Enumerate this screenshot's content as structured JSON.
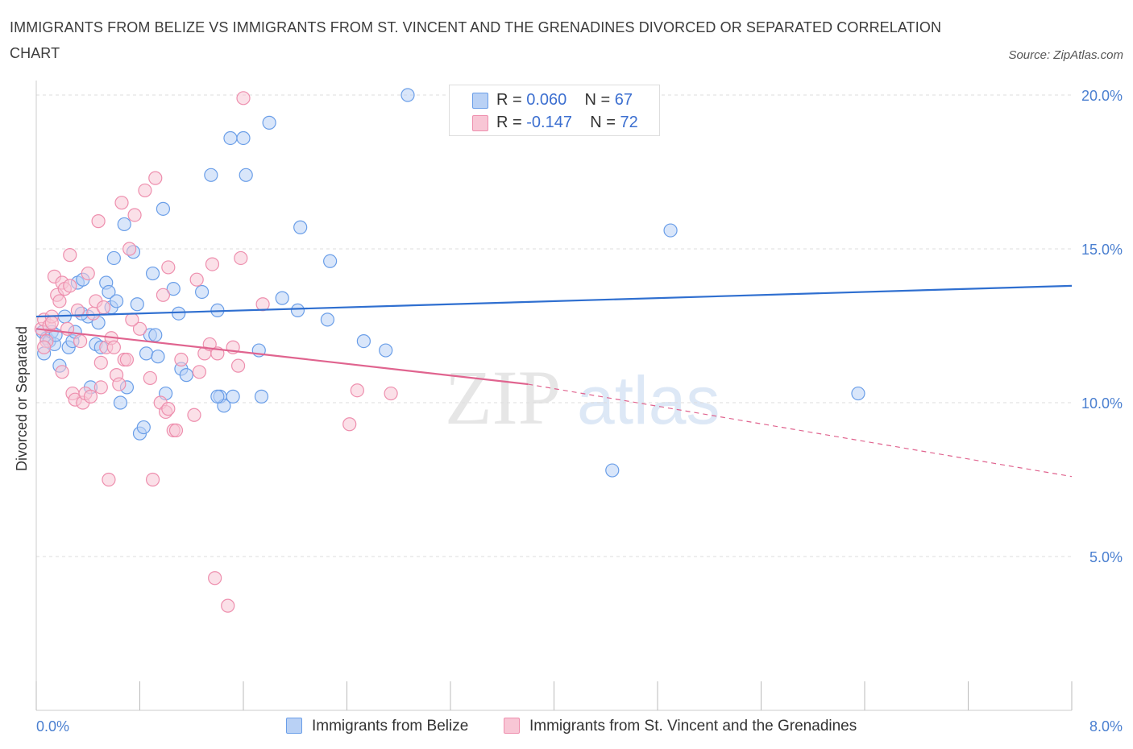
{
  "title": "IMMIGRANTS FROM BELIZE VS IMMIGRANTS FROM ST. VINCENT AND THE GRENADINES DIVORCED OR SEPARATED CORRELATION CHART",
  "source": "Source: ZipAtlas.com",
  "watermark": {
    "zip": "ZIP",
    "atlas": "atlas"
  },
  "legend_stats": [
    {
      "r_label": "R =",
      "r_value": "0.060",
      "n_label": "N =",
      "n_value": "67",
      "color": "#a9c6f2"
    },
    {
      "r_label": "R =",
      "r_value": "-0.147",
      "n_label": "N =",
      "n_value": "72",
      "color": "#f5b8ca"
    }
  ],
  "chart_data": {
    "type": "scatter",
    "ylabel": "Divorced or Separated",
    "xlim": [
      0,
      8
    ],
    "ylim": [
      0,
      20
    ],
    "x_tick_labels": [
      "0.0%",
      "8.0%"
    ],
    "y_ticks": [
      5,
      10,
      15,
      20
    ],
    "y_tick_labels": [
      "5.0%",
      "10.0%",
      "15.0%",
      "20.0%"
    ],
    "grid": "horizontal dashed",
    "legend_position": "bottom",
    "series": [
      {
        "name": "Immigrants from Belize",
        "color": "#6a9ee8",
        "fill": "#b9d1f5",
        "line_color": "#2f6fd0",
        "trend": {
          "x": [
            0,
            8
          ],
          "y": [
            12.8,
            13.8
          ]
        },
        "points": [
          [
            0.05,
            12.3
          ],
          [
            0.08,
            12.1
          ],
          [
            0.1,
            12.0
          ],
          [
            0.12,
            12.3
          ],
          [
            0.14,
            11.9
          ],
          [
            0.18,
            11.2
          ],
          [
            0.22,
            12.8
          ],
          [
            0.25,
            11.8
          ],
          [
            0.28,
            12.0
          ],
          [
            0.3,
            12.3
          ],
          [
            0.32,
            13.9
          ],
          [
            0.36,
            14.0
          ],
          [
            0.4,
            12.8
          ],
          [
            0.42,
            10.5
          ],
          [
            0.46,
            11.9
          ],
          [
            0.48,
            12.6
          ],
          [
            0.5,
            11.8
          ],
          [
            0.54,
            13.9
          ],
          [
            0.56,
            13.6
          ],
          [
            0.58,
            13.1
          ],
          [
            0.6,
            14.7
          ],
          [
            0.62,
            13.3
          ],
          [
            0.65,
            10.0
          ],
          [
            0.68,
            15.8
          ],
          [
            0.7,
            10.5
          ],
          [
            0.75,
            14.9
          ],
          [
            0.78,
            13.2
          ],
          [
            0.8,
            9.0
          ],
          [
            0.83,
            9.2
          ],
          [
            0.85,
            11.6
          ],
          [
            0.88,
            12.2
          ],
          [
            0.9,
            14.2
          ],
          [
            0.92,
            12.2
          ],
          [
            0.94,
            11.5
          ],
          [
            0.98,
            16.3
          ],
          [
            1.0,
            10.3
          ],
          [
            1.06,
            13.7
          ],
          [
            1.1,
            12.9
          ],
          [
            1.12,
            11.1
          ],
          [
            1.16,
            10.9
          ],
          [
            1.28,
            13.6
          ],
          [
            1.35,
            17.4
          ],
          [
            1.4,
            13.0
          ],
          [
            1.42,
            10.2
          ],
          [
            1.45,
            9.9
          ],
          [
            1.5,
            18.6
          ],
          [
            1.52,
            10.2
          ],
          [
            1.6,
            18.6
          ],
          [
            1.62,
            17.4
          ],
          [
            1.72,
            11.7
          ],
          [
            1.74,
            10.2
          ],
          [
            1.8,
            19.1
          ],
          [
            1.9,
            13.4
          ],
          [
            2.02,
            13.0
          ],
          [
            2.04,
            15.7
          ],
          [
            2.25,
            12.7
          ],
          [
            2.27,
            14.6
          ],
          [
            2.53,
            12.0
          ],
          [
            2.7,
            11.7
          ],
          [
            2.87,
            20.0
          ],
          [
            4.45,
            7.8
          ],
          [
            4.9,
            15.6
          ],
          [
            6.35,
            10.3
          ],
          [
            0.06,
            11.6
          ],
          [
            1.4,
            10.2
          ],
          [
            0.15,
            12.2
          ],
          [
            0.35,
            12.9
          ]
        ]
      },
      {
        "name": "Immigrants from St. Vincent and the Grenadines",
        "color": "#ee8fae",
        "fill": "#f8c6d5",
        "line_color": "#e0648f",
        "trend": {
          "x": [
            0,
            3.8
          ],
          "y": [
            12.4,
            10.6
          ]
        },
        "trend_dashed": {
          "x": [
            3.8,
            8
          ],
          "y": [
            10.6,
            7.6
          ]
        },
        "points": [
          [
            0.04,
            12.4
          ],
          [
            0.06,
            12.7
          ],
          [
            0.08,
            12.0
          ],
          [
            0.1,
            12.5
          ],
          [
            0.12,
            12.8
          ],
          [
            0.14,
            14.1
          ],
          [
            0.16,
            13.5
          ],
          [
            0.18,
            13.3
          ],
          [
            0.2,
            13.9
          ],
          [
            0.22,
            13.7
          ],
          [
            0.24,
            12.4
          ],
          [
            0.26,
            14.8
          ],
          [
            0.28,
            10.3
          ],
          [
            0.3,
            10.1
          ],
          [
            0.32,
            13.0
          ],
          [
            0.34,
            12.0
          ],
          [
            0.36,
            10.0
          ],
          [
            0.38,
            10.3
          ],
          [
            0.4,
            14.2
          ],
          [
            0.42,
            10.2
          ],
          [
            0.44,
            12.9
          ],
          [
            0.46,
            13.3
          ],
          [
            0.48,
            15.9
          ],
          [
            0.5,
            11.3
          ],
          [
            0.52,
            13.1
          ],
          [
            0.54,
            11.8
          ],
          [
            0.56,
            7.5
          ],
          [
            0.58,
            12.1
          ],
          [
            0.6,
            11.8
          ],
          [
            0.62,
            10.9
          ],
          [
            0.64,
            10.6
          ],
          [
            0.66,
            16.5
          ],
          [
            0.68,
            11.4
          ],
          [
            0.7,
            11.4
          ],
          [
            0.72,
            15.0
          ],
          [
            0.76,
            16.1
          ],
          [
            0.8,
            12.4
          ],
          [
            0.84,
            16.9
          ],
          [
            0.88,
            10.8
          ],
          [
            0.9,
            7.5
          ],
          [
            0.92,
            17.3
          ],
          [
            0.96,
            10.0
          ],
          [
            0.98,
            13.5
          ],
          [
            1.0,
            9.7
          ],
          [
            1.02,
            14.4
          ],
          [
            1.06,
            9.1
          ],
          [
            1.08,
            9.1
          ],
          [
            1.12,
            11.4
          ],
          [
            1.22,
            9.6
          ],
          [
            1.24,
            14.0
          ],
          [
            1.26,
            11.0
          ],
          [
            1.3,
            11.6
          ],
          [
            1.34,
            11.9
          ],
          [
            1.36,
            14.5
          ],
          [
            1.38,
            4.3
          ],
          [
            1.4,
            11.6
          ],
          [
            1.48,
            3.4
          ],
          [
            1.52,
            11.8
          ],
          [
            1.56,
            11.2
          ],
          [
            1.58,
            14.7
          ],
          [
            1.6,
            19.9
          ],
          [
            1.75,
            13.2
          ],
          [
            2.42,
            9.3
          ],
          [
            2.48,
            10.4
          ],
          [
            2.74,
            10.3
          ],
          [
            0.06,
            11.8
          ],
          [
            0.2,
            11.0
          ],
          [
            0.12,
            12.6
          ],
          [
            1.02,
            9.8
          ],
          [
            0.74,
            12.7
          ],
          [
            0.26,
            13.8
          ],
          [
            0.5,
            10.5
          ]
        ]
      }
    ]
  }
}
